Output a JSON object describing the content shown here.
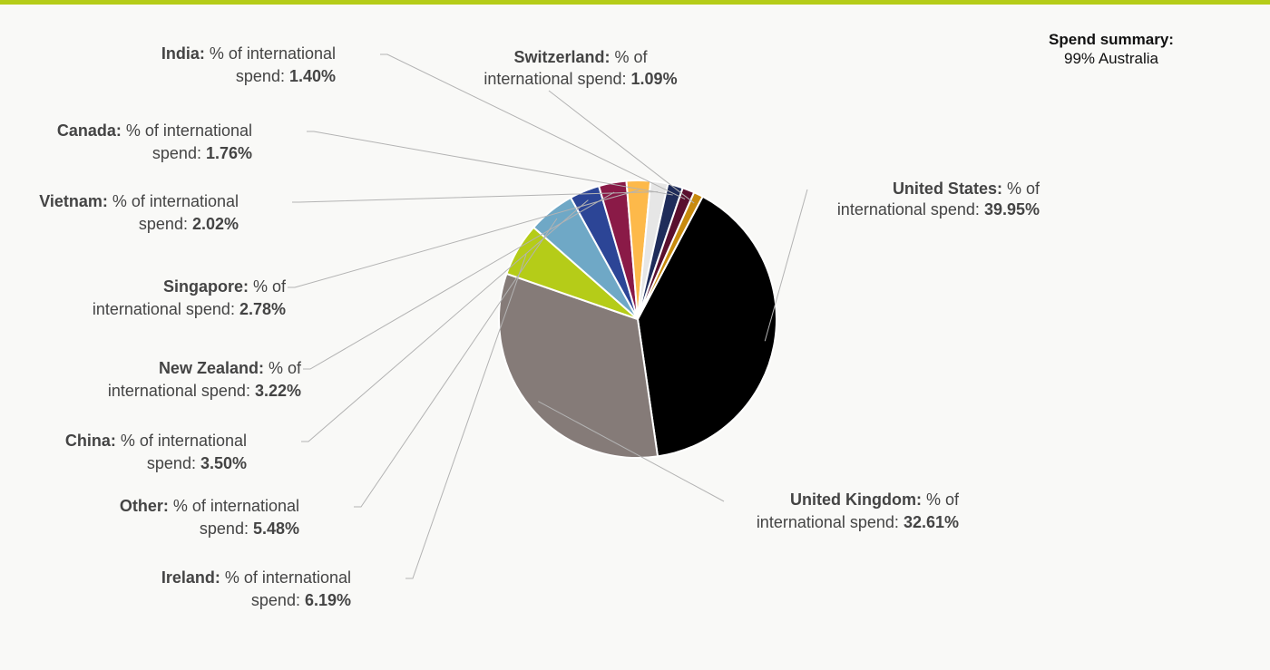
{
  "brand_color": "#b5cc18",
  "summary": {
    "title": "Spend summary:",
    "value": "99% Australia"
  },
  "chart_data": {
    "type": "pie",
    "value_label": "% of international spend",
    "series": [
      {
        "name": "United States",
        "value": 39.95,
        "label_value": "39.95%",
        "color": "#000000"
      },
      {
        "name": "United Kingdom",
        "value": 32.61,
        "label_value": "32.61%",
        "color": "#857b78"
      },
      {
        "name": "Ireland",
        "value": 6.19,
        "label_value": "6.19%",
        "color": "#b5cc18"
      },
      {
        "name": "Other",
        "value": 5.48,
        "label_value": "5.48%",
        "color": "#6fa8c6"
      },
      {
        "name": "China",
        "value": 3.5,
        "label_value": "3.50%",
        "color": "#2c4596"
      },
      {
        "name": "New Zealand",
        "value": 3.22,
        "label_value": "3.22%",
        "color": "#8a1a47"
      },
      {
        "name": "Singapore",
        "value": 2.78,
        "label_value": "2.78%",
        "color": "#fdb94a"
      },
      {
        "name": "Vietnam",
        "value": 2.02,
        "label_value": "2.02%",
        "color": "#e6e6e6"
      },
      {
        "name": "Canada",
        "value": 1.76,
        "label_value": "1.76%",
        "color": "#1f2c5a"
      },
      {
        "name": "India",
        "value": 1.4,
        "label_value": "1.40%",
        "color": "#5a0f2e"
      },
      {
        "name": "Switzerland",
        "value": 1.09,
        "label_value": "1.09%",
        "color": "#c88a0e"
      }
    ]
  }
}
